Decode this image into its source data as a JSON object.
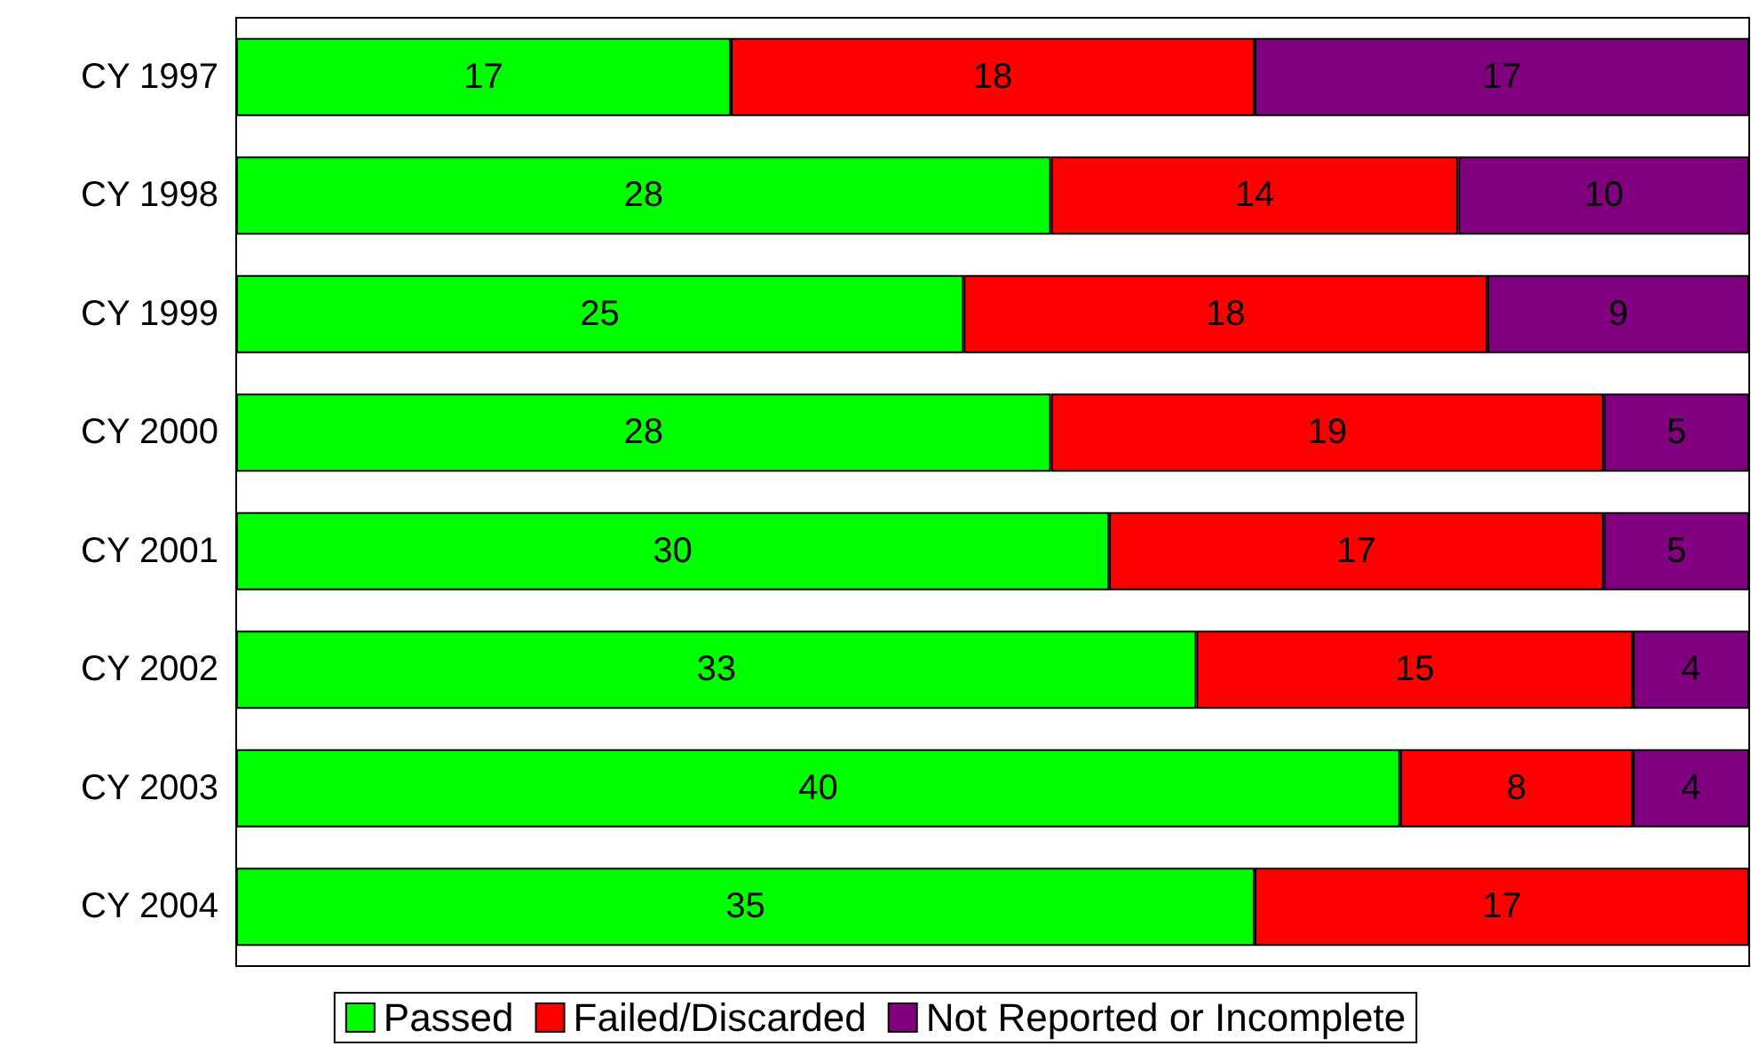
{
  "chart_data": {
    "type": "bar",
    "orientation": "horizontal",
    "stacked": true,
    "data_labels": true,
    "legend": "bottom",
    "grid": false,
    "tick_labels": "y",
    "xlim": [
      0,
      52
    ],
    "categories": [
      "CY 1997",
      "CY 1998",
      "CY 1999",
      "CY 2000",
      "CY 2001",
      "CY 2002",
      "CY 2003",
      "CY 2004"
    ],
    "series": [
      {
        "name": "Passed",
        "color": "#00ff00",
        "values": [
          17,
          28,
          25,
          28,
          30,
          33,
          40,
          35
        ]
      },
      {
        "name": "Failed/Discarded",
        "color": "#ff0000",
        "values": [
          18,
          14,
          18,
          19,
          17,
          15,
          8,
          17
        ]
      },
      {
        "name": "Not Reported or Incomplete",
        "color": "#800080",
        "values": [
          17,
          10,
          9,
          5,
          5,
          4,
          4,
          null
        ]
      }
    ]
  }
}
